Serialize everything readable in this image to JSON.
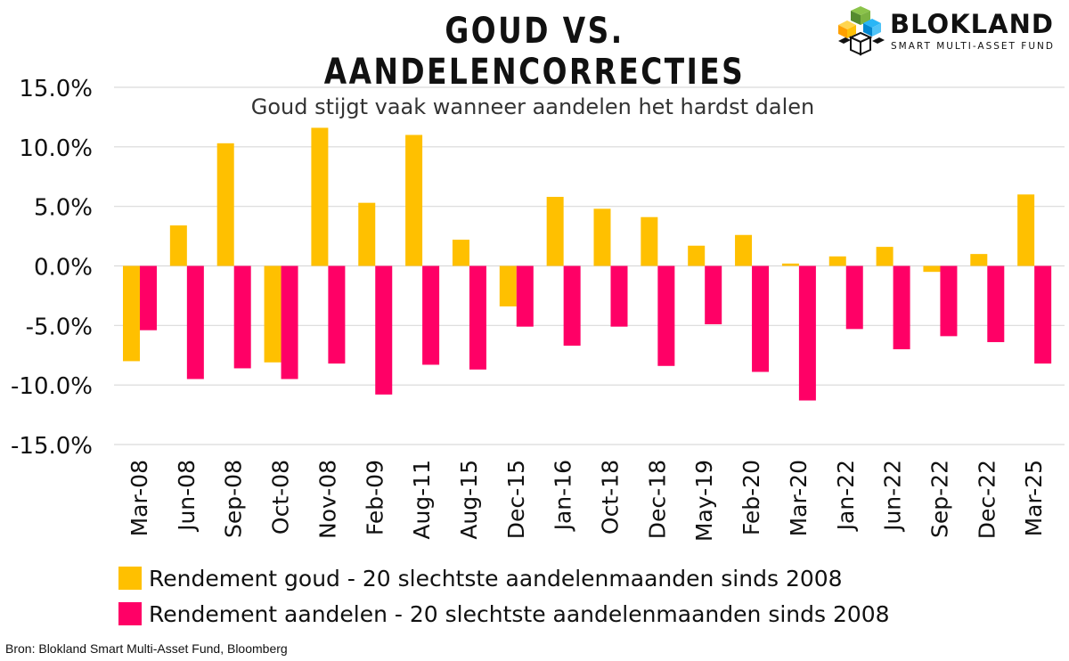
{
  "header": {
    "title": "GOUD VS. AANDELENCORRECTIES"
  },
  "logo": {
    "name": "BLOKLAND",
    "tagline": "SMART MULTI-ASSET FUND"
  },
  "source": "Bron: Blokland Smart Multi-Asset Fund, Bloomberg",
  "colors": {
    "gold": "#FFC000",
    "equities": "#FF0066",
    "grid": "#D9D9D9"
  },
  "chart_data": {
    "type": "bar",
    "title": "",
    "annotation": "Goud stijgt vaak wanneer aandelen het hardst dalen",
    "xlabel": "",
    "ylabel": "",
    "ylim": [
      -15,
      15
    ],
    "yticks": [
      "15.0%",
      "10.0%",
      "5.0%",
      "0.0%",
      "-5.0%",
      "-10.0%",
      "-15.0%"
    ],
    "ytick_values": [
      15,
      10,
      5,
      0,
      -5,
      -10,
      -15
    ],
    "grid": true,
    "legend_position": "bottom-left",
    "categories": [
      "Mar-08",
      "Jun-08",
      "Sep-08",
      "Oct-08",
      "Nov-08",
      "Feb-09",
      "Aug-11",
      "Aug-15",
      "Dec-15",
      "Jan-16",
      "Oct-18",
      "Dec-18",
      "May-19",
      "Feb-20",
      "Mar-20",
      "Jan-22",
      "Jun-22",
      "Sep-22",
      "Dec-22",
      "Mar-25"
    ],
    "series": [
      {
        "name": "Rendement goud - 20 slechtste aandelenmaanden sinds 2008",
        "values": [
          -8.0,
          3.4,
          10.3,
          -8.1,
          11.6,
          5.3,
          11.0,
          2.2,
          -3.4,
          5.8,
          4.8,
          4.1,
          1.7,
          2.6,
          0.2,
          0.8,
          1.6,
          -0.5,
          1.0,
          6.0
        ]
      },
      {
        "name": "Rendement aandelen - 20 slechtste aandelenmaanden sinds 2008",
        "values": [
          -5.4,
          -9.5,
          -8.6,
          -9.5,
          -8.2,
          -10.8,
          -8.3,
          -8.7,
          -5.1,
          -6.7,
          -5.1,
          -8.4,
          -4.9,
          -8.9,
          -11.3,
          -5.3,
          -7.0,
          -5.9,
          -6.4,
          -8.2
        ]
      }
    ]
  }
}
